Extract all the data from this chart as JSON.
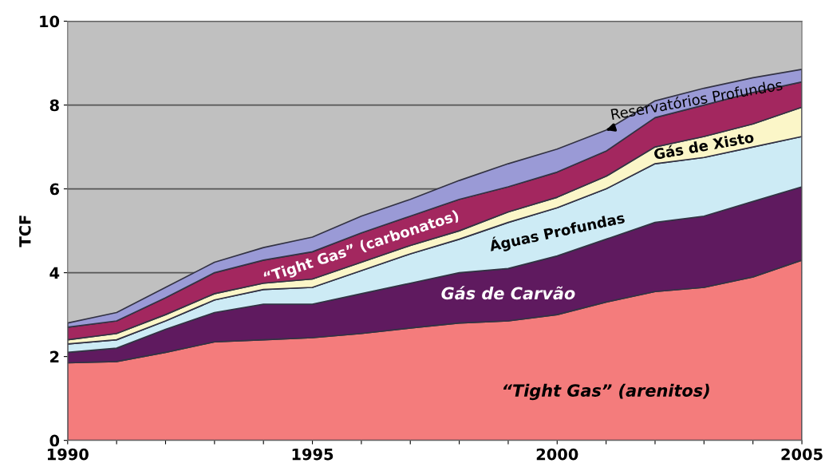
{
  "chart_data": {
    "type": "area",
    "stacked": true,
    "ylabel": "TCF",
    "x": [
      1990,
      1991,
      1992,
      1993,
      1994,
      1995,
      1996,
      1997,
      1998,
      1999,
      2000,
      2001,
      2002,
      2003,
      2004,
      2005
    ],
    "xlim": [
      1990,
      2005
    ],
    "ylim": [
      0,
      10
    ],
    "xticks": [
      1990,
      {
        "value": 1991,
        "label": null
      },
      {
        "value": 1992,
        "label": null
      },
      {
        "value": 1993,
        "label": null
      },
      {
        "value": 1994,
        "label": null
      },
      1995,
      {
        "value": 1996,
        "label": null
      },
      {
        "value": 1997,
        "label": null
      },
      {
        "value": 1998,
        "label": null
      },
      {
        "value": 1999,
        "label": null
      },
      2000,
      {
        "value": 2001,
        "label": null
      },
      {
        "value": 2002,
        "label": null
      },
      {
        "value": 2003,
        "label": null
      },
      {
        "value": 2004,
        "label": null
      },
      2005
    ],
    "yticks": [
      0,
      2,
      4,
      6,
      8,
      10
    ],
    "grid": "y",
    "legend": false,
    "series": [
      {
        "name": "“Tight Gas” (arenitos)",
        "color": "#f47c7c",
        "values": [
          1.85,
          1.88,
          2.1,
          2.35,
          2.4,
          2.45,
          2.55,
          2.68,
          2.8,
          2.85,
          3.0,
          3.3,
          3.55,
          3.65,
          3.9,
          4.3
        ]
      },
      {
        "name": "Gás de Carvão",
        "color": "#5f1a5f",
        "values": [
          0.25,
          0.32,
          0.55,
          0.7,
          0.85,
          0.8,
          0.95,
          1.07,
          1.2,
          1.25,
          1.4,
          1.5,
          1.65,
          1.7,
          1.8,
          1.75
        ]
      },
      {
        "name": "Águas Profundas",
        "color": "#cdebf5",
        "values": [
          0.2,
          0.2,
          0.2,
          0.3,
          0.35,
          0.4,
          0.55,
          0.7,
          0.8,
          1.1,
          1.15,
          1.2,
          1.4,
          1.4,
          1.3,
          1.2
        ]
      },
      {
        "name": "Gás de Xisto",
        "color": "#fbf6c8",
        "values": [
          0.1,
          0.15,
          0.15,
          0.15,
          0.15,
          0.2,
          0.2,
          0.2,
          0.2,
          0.25,
          0.25,
          0.3,
          0.4,
          0.5,
          0.55,
          0.7
        ]
      },
      {
        "name": "“Tight Gas” (carbonatos)",
        "color": "#a3275f",
        "values": [
          0.3,
          0.3,
          0.4,
          0.5,
          0.55,
          0.65,
          0.7,
          0.7,
          0.75,
          0.6,
          0.6,
          0.6,
          0.7,
          0.75,
          0.75,
          0.6
        ]
      },
      {
        "name": "Reservatórios Profundos",
        "color": "#9a9ad6",
        "values": [
          0.1,
          0.2,
          0.25,
          0.25,
          0.3,
          0.35,
          0.4,
          0.4,
          0.45,
          0.55,
          0.55,
          0.5,
          0.4,
          0.4,
          0.35,
          0.3
        ]
      }
    ]
  }
}
